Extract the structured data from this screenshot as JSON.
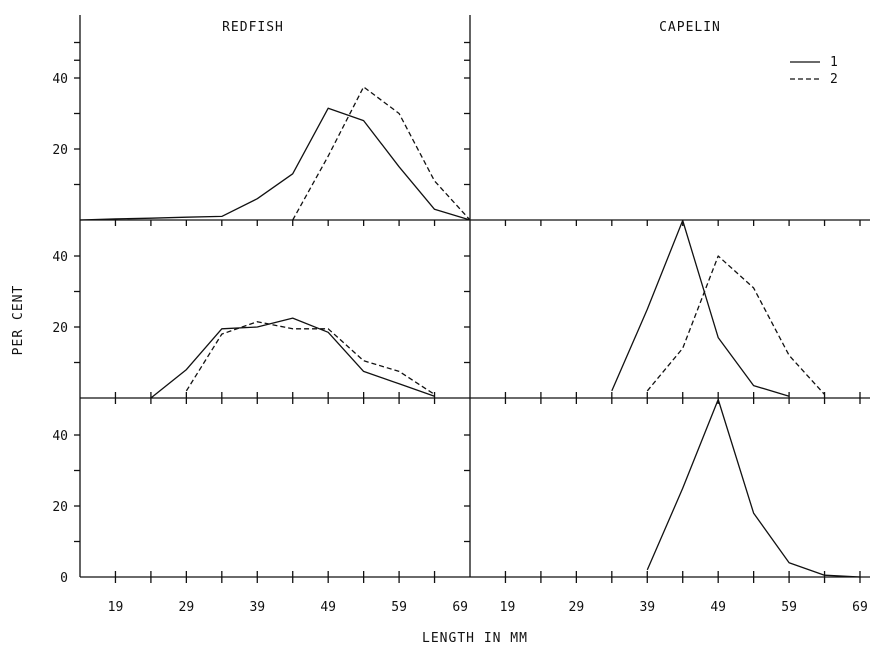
{
  "chart_data": {
    "type": "line",
    "column_titles": [
      "REDFISH",
      "CAPELIN"
    ],
    "xlabel": "LENGTH IN MM",
    "ylabel": "PER CENT",
    "x_tick_labels": [
      "19",
      "29",
      "39",
      "49",
      "59",
      "69"
    ],
    "xlim": [
      14,
      69
    ],
    "ylim": [
      0,
      50
    ],
    "y_tick_labels": [
      "20",
      "40"
    ],
    "bottom_zero_label": "0",
    "grid": false,
    "legend": {
      "placement": "top-right",
      "entries": [
        {
          "label": "1",
          "style": "solid"
        },
        {
          "label": "2",
          "style": "dashed"
        }
      ]
    },
    "panels": [
      {
        "row": 0,
        "col": 0,
        "series": [
          {
            "legend": "1",
            "style": "solid",
            "x": [
              14,
              19,
              24,
              29,
              34,
              39,
              44,
              49,
              54,
              59,
              64,
              69
            ],
            "y": [
              0,
              0.3,
              0.5,
              0.8,
              1,
              6,
              13,
              31.5,
              28,
              15,
              3,
              0
            ]
          },
          {
            "legend": "2",
            "style": "dashed",
            "x": [
              44,
              49,
              54,
              59,
              64,
              69
            ],
            "y": [
              0,
              18,
              37.5,
              30,
              11,
              0
            ]
          }
        ]
      },
      {
        "row": 0,
        "col": 1,
        "series": []
      },
      {
        "row": 1,
        "col": 0,
        "series": [
          {
            "legend": "1",
            "style": "solid",
            "x": [
              24,
              29,
              34,
              39,
              44,
              49,
              54,
              59,
              64
            ],
            "y": [
              0,
              8,
              19.5,
              20,
              22.5,
              18.5,
              7.5,
              4,
              0.5
            ]
          },
          {
            "legend": "2",
            "style": "dashed",
            "x": [
              29,
              34,
              39,
              44,
              49,
              54,
              59,
              64
            ],
            "y": [
              2,
              18,
              21.5,
              19.5,
              19.5,
              10.5,
              7.5,
              1
            ]
          }
        ]
      },
      {
        "row": 1,
        "col": 1,
        "series": [
          {
            "legend": "1",
            "style": "solid",
            "x": [
              34,
              39,
              44,
              49,
              54,
              59
            ],
            "y": [
              2,
              25,
              50,
              17,
              3.5,
              0.5
            ]
          },
          {
            "legend": "2",
            "style": "dashed",
            "x": [
              39,
              44,
              49,
              54,
              59,
              64
            ],
            "y": [
              2,
              14,
              40,
              31,
              12,
              1
            ]
          }
        ]
      },
      {
        "row": 2,
        "col": 0,
        "series": []
      },
      {
        "row": 2,
        "col": 1,
        "series": [
          {
            "legend": "1",
            "style": "solid",
            "x": [
              39,
              44,
              49,
              54,
              59,
              64,
              69
            ],
            "y": [
              2,
              25,
              50,
              18,
              4,
              0.5,
              0
            ]
          }
        ]
      }
    ]
  }
}
